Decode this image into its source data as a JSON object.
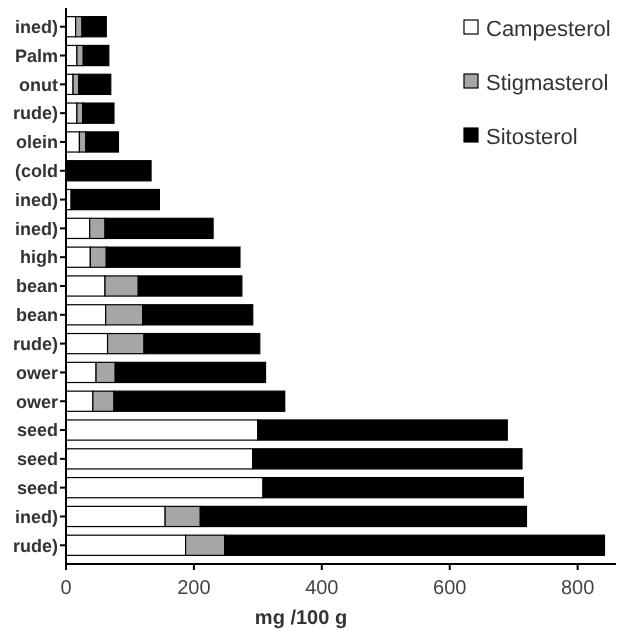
{
  "chart_data": {
    "type": "bar",
    "orientation": "horizontal",
    "stacked": true,
    "xlabel": "mg /100 g",
    "categories": [
      "ined)",
      "Palm",
      "onut",
      "rude)",
      "olein",
      "(cold",
      "ined)",
      "ined)",
      "high",
      "bean",
      "bean",
      "rude)",
      "ower",
      "ower",
      "seed",
      "seed",
      "seed",
      "ined)",
      "rude)"
    ],
    "series": [
      {
        "name": "Campesterol",
        "color": "#ffffff",
        "values": [
          15,
          17,
          11,
          17,
          21,
          null,
          8,
          37,
          38,
          61,
          62,
          65,
          47,
          42,
          300,
          292,
          308,
          155,
          187
        ]
      },
      {
        "name": "Stigmasterol",
        "color": "#a6a6a6",
        "values": [
          10,
          10,
          9,
          9,
          10,
          null,
          null,
          24,
          25,
          52,
          58,
          57,
          30,
          33,
          0,
          0,
          0,
          55,
          61
        ]
      },
      {
        "name": "Sitosterol",
        "color": "#000000",
        "values": [
          38,
          40,
          50,
          49,
          51,
          133,
          138,
          169,
          209,
          162,
          172,
          181,
          235,
          267,
          390,
          421,
          407,
          510,
          594
        ]
      }
    ],
    "xlim": [
      0,
      860
    ],
    "xticks": [
      0,
      200,
      400,
      600,
      800
    ],
    "legend": "top right",
    "grid": false
  }
}
